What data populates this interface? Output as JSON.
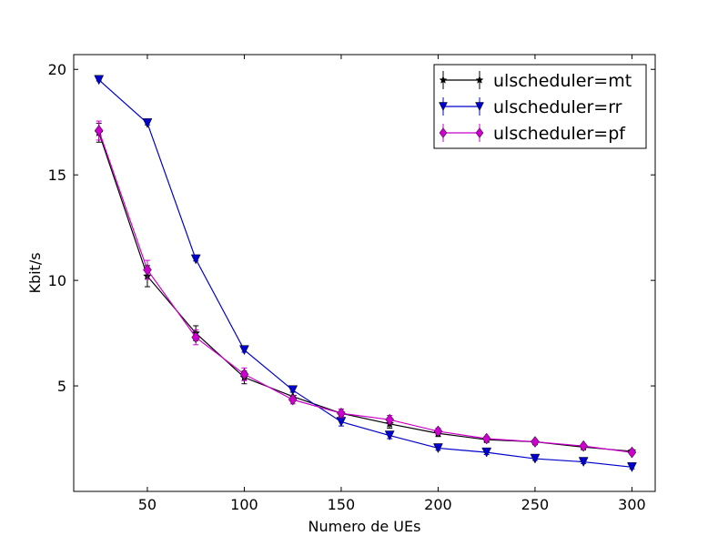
{
  "chart_data": {
    "type": "line",
    "xlabel": "Numero de UEs",
    "ylabel": "Kbit/s",
    "xlim": [
      12,
      312
    ],
    "ylim": [
      0,
      20.7
    ],
    "xticks": [
      50,
      100,
      150,
      200,
      250,
      300
    ],
    "yticks": [
      5,
      10,
      15,
      20
    ],
    "x": [
      25,
      50,
      75,
      100,
      125,
      150,
      175,
      200,
      225,
      250,
      275,
      300
    ],
    "legend_position": "top-right",
    "grid": false,
    "series": [
      {
        "name": "ulscheduler=mt",
        "color": "#000000",
        "marker": "star",
        "values": [
          17.0,
          10.2,
          7.5,
          5.4,
          4.5,
          3.7,
          3.2,
          2.75,
          2.45,
          2.35,
          2.1,
          1.9
        ],
        "errors": [
          0.45,
          0.5,
          0.35,
          0.3,
          0.2,
          0.2,
          0.2,
          0.15,
          0.1,
          0.1,
          0.08,
          0.08
        ]
      },
      {
        "name": "ulscheduler=rr",
        "color": "#0000cc",
        "marker": "triangle-down",
        "values": [
          19.5,
          17.45,
          11.0,
          6.7,
          4.8,
          3.3,
          2.65,
          2.05,
          1.85,
          1.55,
          1.4,
          1.15
        ],
        "errors": [
          0.05,
          0.08,
          0.08,
          0.1,
          0.1,
          0.2,
          0.15,
          0.1,
          0.1,
          0.08,
          0.08,
          0.08
        ]
      },
      {
        "name": "ulscheduler=pf",
        "color": "#cc00cc",
        "marker": "diamond",
        "values": [
          17.1,
          10.5,
          7.3,
          5.55,
          4.35,
          3.7,
          3.4,
          2.85,
          2.5,
          2.35,
          2.15,
          1.85
        ],
        "errors": [
          0.45,
          0.45,
          0.35,
          0.3,
          0.2,
          0.2,
          0.2,
          0.15,
          0.1,
          0.1,
          0.08,
          0.08
        ]
      }
    ]
  }
}
